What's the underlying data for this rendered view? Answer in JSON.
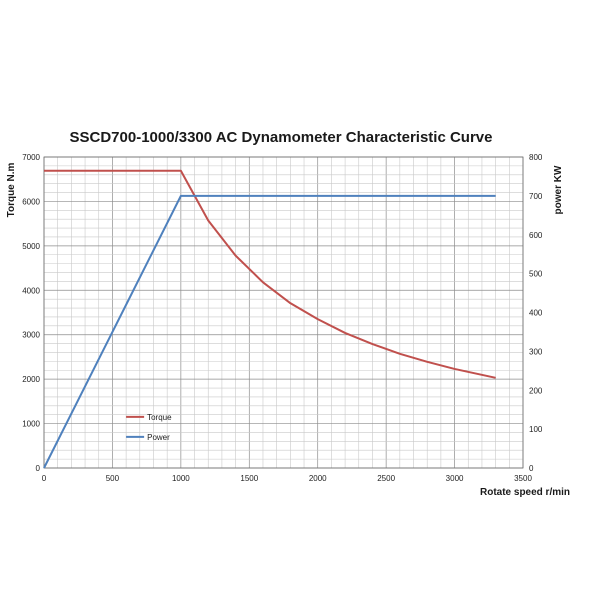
{
  "chart_data": {
    "type": "line",
    "title": "SSCD700-1000/3300 AC Dynamometer Characteristic Curve",
    "xlabel": "Rotate speed r/min",
    "ylabel_left": "Torque N.m",
    "ylabel_right": "power KW",
    "xlim": [
      0,
      3500
    ],
    "ylim_left": [
      0,
      7000
    ],
    "ylim_right": [
      0,
      800
    ],
    "x_ticks": [
      "0",
      "500",
      "1000",
      "1500",
      "2000",
      "2500",
      "3000",
      "3500"
    ],
    "y_left_ticks": [
      "0",
      "1000",
      "2000",
      "3000",
      "4000",
      "5000",
      "6000",
      "7000"
    ],
    "y_right_ticks": [
      "0",
      "100",
      "200",
      "300",
      "400",
      "500",
      "600",
      "700",
      "800"
    ],
    "grid": true,
    "legend_position": "lower-left inside",
    "series": [
      {
        "name": "Torque",
        "axis": "left",
        "color": "#c0504d",
        "points": [
          [
            0,
            6690
          ],
          [
            1000,
            6690
          ],
          [
            1200,
            5570
          ],
          [
            1400,
            4780
          ],
          [
            1600,
            4180
          ],
          [
            1800,
            3710
          ],
          [
            2000,
            3350
          ],
          [
            2200,
            3040
          ],
          [
            2400,
            2790
          ],
          [
            2600,
            2570
          ],
          [
            2800,
            2390
          ],
          [
            3000,
            2230
          ],
          [
            3300,
            2030
          ]
        ]
      },
      {
        "name": "Power",
        "axis": "right",
        "color": "#4f81bd",
        "points": [
          [
            0,
            0
          ],
          [
            1000,
            700
          ],
          [
            3300,
            700
          ]
        ]
      }
    ]
  }
}
